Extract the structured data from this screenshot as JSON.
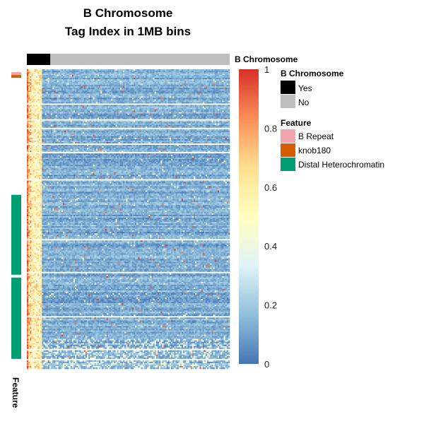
{
  "chart_data": {
    "type": "heatmap",
    "title_line1": "B Chromosome",
    "title_line2": "Tag Index in 1MB bins",
    "column_annotation": {
      "label": "B Chromosome",
      "yes_columns": 10,
      "total_columns": 135
    },
    "row_count": 210,
    "feature_axis_label": "Feature",
    "feature_annotation": [
      {
        "feature": "B Repeat",
        "row_start": 2,
        "row_end": 3
      },
      {
        "feature": "knob180",
        "row_start": 4,
        "row_end": 5
      },
      {
        "feature": "Distal Heterochromatin",
        "row_start": 88,
        "row_end": 143
      },
      {
        "feature": "Distal Heterochromatin",
        "row_start": 146,
        "row_end": 202
      }
    ],
    "white_rows": [
      24,
      35,
      41,
      52,
      58,
      77,
      119,
      142,
      173,
      196,
      203
    ],
    "color_scale": {
      "min": 0,
      "max": 1,
      "ticks": [
        "0",
        "0.2",
        "0.4",
        "0.6",
        "0.8",
        "1"
      ],
      "stops": [
        "#4575b4",
        "#91bfdb",
        "#e0f3f8",
        "#ffffbf",
        "#fee090",
        "#fc8d59",
        "#d73027"
      ]
    },
    "legend": {
      "b_chromosome": {
        "title": "B Chromosome",
        "items": [
          {
            "label": "Yes",
            "color": "#000000"
          },
          {
            "label": "No",
            "color": "#bebebe"
          }
        ]
      },
      "feature": {
        "title": "Feature",
        "items": [
          {
            "label": "B Repeat",
            "color": "#f1a3ae"
          },
          {
            "label": "knob180",
            "color": "#d55e00"
          },
          {
            "label": "Distal Heterochromatin",
            "color": "#009e73"
          }
        ]
      }
    }
  }
}
